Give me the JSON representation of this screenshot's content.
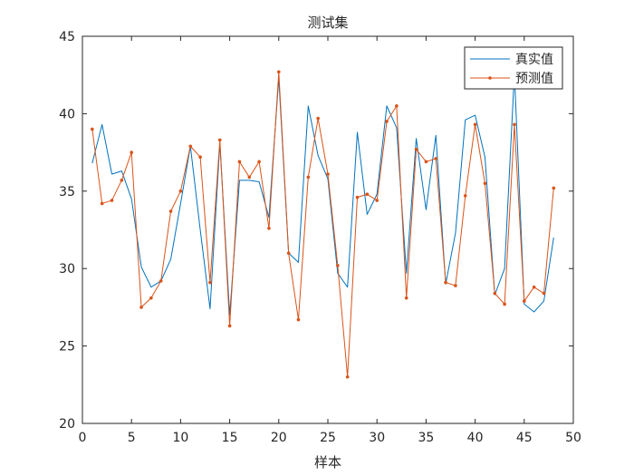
{
  "chart_data": {
    "type": "line",
    "title": "测试集",
    "xlabel": "样本",
    "ylabel": "",
    "xlim": [
      0,
      50
    ],
    "ylim": [
      20,
      45
    ],
    "xticks": [
      0,
      5,
      10,
      15,
      20,
      25,
      30,
      35,
      40,
      45,
      50
    ],
    "yticks": [
      20,
      25,
      30,
      35,
      40,
      45
    ],
    "grid": false,
    "legend_position": "top-right",
    "x": [
      1,
      2,
      3,
      4,
      5,
      6,
      7,
      8,
      9,
      10,
      11,
      12,
      13,
      14,
      15,
      16,
      17,
      18,
      19,
      20,
      21,
      22,
      23,
      24,
      25,
      26,
      27,
      28,
      29,
      30,
      31,
      32,
      33,
      34,
      35,
      36,
      37,
      38,
      39,
      40,
      41,
      42,
      43,
      44,
      45,
      46,
      47,
      48
    ],
    "series": [
      {
        "name": "真实值",
        "color": "#0072BD",
        "marker": "none",
        "values": [
          36.8,
          39.3,
          36.1,
          36.3,
          34.5,
          30.1,
          28.8,
          29.2,
          30.6,
          34.2,
          37.9,
          32.5,
          27.4,
          38.1,
          27.0,
          35.7,
          35.7,
          35.6,
          33.3,
          42.3,
          31.0,
          30.4,
          40.5,
          37.3,
          35.8,
          29.7,
          28.8,
          38.8,
          33.5,
          34.8,
          40.5,
          39.1,
          29.7,
          38.4,
          33.8,
          38.6,
          29.0,
          32.3,
          39.6,
          39.9,
          37.2,
          28.3,
          30.0,
          42.6,
          27.7,
          27.2,
          27.9,
          32.0
        ]
      },
      {
        "name": "预测值",
        "color": "#D95319",
        "marker": "dot",
        "values": [
          39.0,
          34.2,
          34.4,
          35.7,
          37.5,
          27.5,
          28.1,
          29.2,
          33.7,
          35.0,
          37.9,
          37.2,
          29.1,
          38.3,
          26.3,
          36.9,
          35.9,
          36.9,
          32.6,
          42.7,
          31.0,
          26.7,
          35.9,
          39.7,
          36.1,
          30.2,
          23.0,
          34.6,
          34.8,
          34.4,
          39.5,
          40.5,
          28.1,
          37.7,
          36.9,
          37.1,
          29.1,
          28.9,
          34.7,
          39.3,
          35.5,
          28.4,
          27.7,
          39.3,
          27.9,
          28.8,
          28.4,
          35.2
        ]
      }
    ]
  }
}
